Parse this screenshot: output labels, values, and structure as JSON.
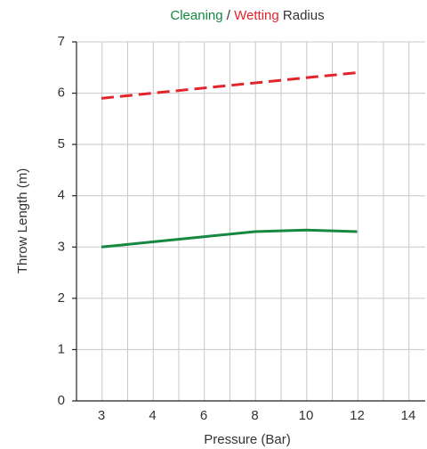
{
  "chart_data": {
    "type": "line",
    "title": [
      {
        "text": "Cleaning",
        "color": "#14893f"
      },
      {
        "text": "/",
        "color": "#333333"
      },
      {
        "text": "Wetting",
        "color": "#e3252b"
      },
      {
        "text": "Radius",
        "color": "#333333"
      }
    ],
    "x_label": "Pressure (Bar)",
    "y_label": "Throw Length (m)",
    "categories": [
      "3",
      "4",
      "6",
      "8",
      "10",
      "12",
      "14"
    ],
    "series": [
      {
        "name": "Cleaning",
        "color": "#14893f",
        "dashed": false,
        "values": [
          3.0,
          3.1,
          3.2,
          3.3,
          3.33,
          3.3,
          null
        ]
      },
      {
        "name": "Wetting",
        "color": "#e3252b",
        "dashed": true,
        "values": [
          5.9,
          6.0,
          6.1,
          6.2,
          6.3,
          6.4,
          null
        ]
      }
    ],
    "ylim": [
      0,
      7
    ],
    "yticks": [
      0,
      1,
      2,
      3,
      4,
      5,
      6,
      7
    ],
    "grid": true
  }
}
